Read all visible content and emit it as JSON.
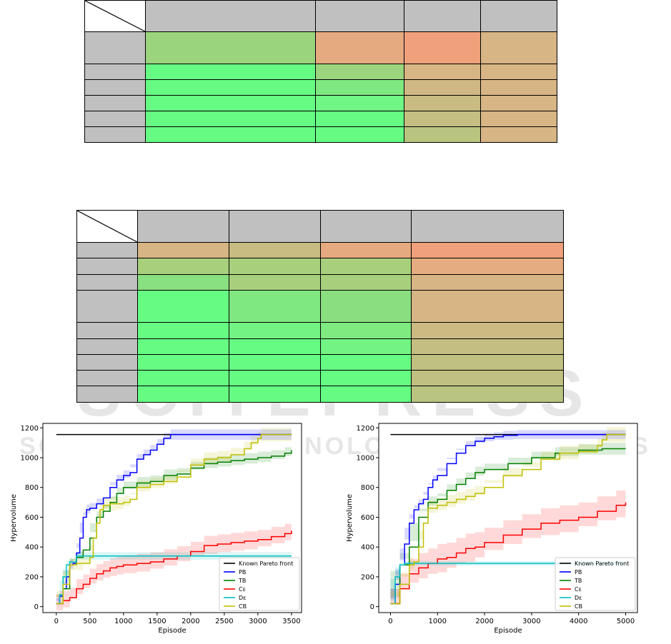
{
  "colors": {
    "header_gray": "#c0c0c0",
    "green": "#66ff88",
    "orange": "#f0a07a",
    "tan": "#d8b584",
    "watermark": "#d7d7d7"
  },
  "table1": {
    "col_widths": [
      85,
      238,
      124,
      107,
      107
    ],
    "row_heights": [
      44,
      45,
      22,
      22,
      22,
      22,
      22
    ],
    "cells": [
      [
        "#ffffff",
        "#c0c0c0",
        "#c0c0c0",
        "#c0c0c0",
        "#c0c0c0"
      ],
      [
        "#c0c0c0",
        "#9ad47c",
        "#e6aa80",
        "#f0a07a",
        "#d8b584"
      ],
      [
        "#c0c0c0",
        "#66fc84",
        "#9ad47c",
        "#d8b584",
        "#d8b584"
      ],
      [
        "#c0c0c0",
        "#66fc84",
        "#80e880",
        "#d0b884",
        "#d8b584"
      ],
      [
        "#c0c0c0",
        "#66fc84",
        "#6ff684",
        "#c8bc82",
        "#d8b584"
      ],
      [
        "#c0c0c0",
        "#66fc84",
        "#66fc84",
        "#c4be82",
        "#d8b584"
      ],
      [
        "#c0c0c0",
        "#66fc84",
        "#66fc84",
        "#b8c480",
        "#d8b584"
      ]
    ]
  },
  "table2": {
    "col_widths": [
      85,
      128,
      128,
      127,
      213
    ],
    "row_heights": [
      45,
      22,
      23,
      22,
      45,
      23,
      22,
      22,
      22,
      23
    ],
    "cells": [
      [
        "#ffffff",
        "#c0c0c0",
        "#c0c0c0",
        "#c0c0c0",
        "#c0c0c0"
      ],
      [
        "#c0c0c0",
        "#d8b584",
        "#c8bc82",
        "#e6aa80",
        "#f0a07a"
      ],
      [
        "#c0c0c0",
        "#a8d07c",
        "#a8d07c",
        "#a8d07c",
        "#e4ac80"
      ],
      [
        "#c0c0c0",
        "#88e080",
        "#a8d07c",
        "#a8d07c",
        "#d8b584"
      ],
      [
        "#c0c0c0",
        "#66fc84",
        "#80e880",
        "#8ade80",
        "#d8b584"
      ],
      [
        "#c0c0c0",
        "#66fc84",
        "#73f384",
        "#7eea80",
        "#cbba82"
      ],
      [
        "#c0c0c0",
        "#66fc84",
        "#66fc84",
        "#73f384",
        "#c4be82"
      ],
      [
        "#c0c0c0",
        "#66fc84",
        "#66fc84",
        "#66fc84",
        "#c0c080"
      ],
      [
        "#c0c0c0",
        "#66fc84",
        "#66fc84",
        "#66fc84",
        "#c0c080"
      ],
      [
        "#c0c0c0",
        "#66fc84",
        "#66fc84",
        "#66fc84",
        "#b8c480"
      ]
    ]
  },
  "watermark": {
    "line1": "SCITEPRESS",
    "line2": "SCIENCE AND TECHNOLOGY PUBLICATIONS"
  },
  "chart_data": [
    {
      "type": "line",
      "xlabel": "Episode",
      "ylabel": "Hypervolume",
      "xlim": [
        -200,
        3650
      ],
      "ylim": [
        -40,
        1230
      ],
      "xticks": [
        0,
        500,
        1000,
        1500,
        2000,
        2500,
        3000,
        3500
      ],
      "yticks": [
        0,
        200,
        400,
        600,
        800,
        1000,
        1200
      ],
      "grid": false,
      "legend_position": "lower-right",
      "series": [
        {
          "name": "Known Pareto front",
          "color": "#000000",
          "x": [
            0,
            3500
          ],
          "y": [
            1155,
            1155
          ],
          "band": 0
        },
        {
          "name": "PB",
          "color": "#0000ff",
          "x": [
            0,
            50,
            100,
            150,
            200,
            250,
            300,
            350,
            400,
            450,
            500,
            600,
            700,
            800,
            900,
            1000,
            1100,
            1200,
            1300,
            1400,
            1500,
            1600,
            1700,
            1800,
            3500
          ],
          "y": [
            20,
            70,
            120,
            200,
            280,
            290,
            360,
            460,
            600,
            650,
            660,
            690,
            730,
            800,
            850,
            880,
            900,
            990,
            1020,
            1050,
            1090,
            1130,
            1155,
            1155,
            1155
          ],
          "band": 35
        },
        {
          "name": "TB",
          "color": "#008000",
          "x": [
            0,
            100,
            200,
            300,
            400,
            500,
            600,
            700,
            800,
            900,
            1000,
            1200,
            1400,
            1600,
            1800,
            2000,
            2200,
            2400,
            2600,
            2800,
            3000,
            3200,
            3400,
            3500
          ],
          "y": [
            20,
            120,
            280,
            330,
            380,
            460,
            600,
            640,
            700,
            760,
            800,
            830,
            840,
            880,
            890,
            930,
            960,
            970,
            980,
            990,
            1000,
            1010,
            1030,
            1050
          ],
          "band": 40
        },
        {
          "name": "Cε",
          "color": "#ff0000",
          "x": [
            0,
            100,
            200,
            300,
            400,
            500,
            600,
            700,
            800,
            900,
            1000,
            1200,
            1400,
            1600,
            1800,
            2000,
            2200,
            2400,
            2600,
            2800,
            3000,
            3200,
            3400,
            3500
          ],
          "y": [
            20,
            40,
            60,
            120,
            150,
            190,
            220,
            240,
            260,
            270,
            280,
            290,
            300,
            320,
            340,
            370,
            410,
            420,
            430,
            440,
            450,
            470,
            490,
            510
          ],
          "band": 65
        },
        {
          "name": "Dε",
          "color": "#00bfbf",
          "x": [
            0,
            50,
            100,
            150,
            200,
            300,
            400,
            500,
            3500
          ],
          "y": [
            20,
            80,
            200,
            280,
            300,
            340,
            340,
            340,
            340
          ],
          "band": 25
        },
        {
          "name": "CB",
          "color": "#bfbf00",
          "x": [
            0,
            100,
            200,
            300,
            400,
            500,
            550,
            600,
            650,
            700,
            800,
            900,
            1000,
            1100,
            1200,
            1400,
            1600,
            1800,
            2000,
            2200,
            2400,
            2600,
            2800,
            2900,
            3000,
            3050,
            3500
          ],
          "y": [
            20,
            150,
            280,
            290,
            290,
            330,
            460,
            560,
            650,
            680,
            690,
            690,
            700,
            720,
            800,
            820,
            840,
            870,
            950,
            990,
            1000,
            1020,
            1060,
            1100,
            1130,
            1155,
            1155
          ],
          "band": 45
        }
      ]
    },
    {
      "type": "line",
      "xlabel": "Episode",
      "ylabel": "Hypervolume",
      "xlim": [
        -250,
        5250
      ],
      "ylim": [
        -40,
        1230
      ],
      "xticks": [
        0,
        1000,
        2000,
        3000,
        4000,
        5000
      ],
      "yticks": [
        0,
        200,
        400,
        600,
        800,
        1000,
        1200
      ],
      "grid": false,
      "legend_position": "lower-right",
      "series": [
        {
          "name": "Known Pareto front",
          "color": "#000000",
          "x": [
            0,
            5000
          ],
          "y": [
            1155,
            1155
          ],
          "band": 0
        },
        {
          "name": "PB",
          "color": "#0000ff",
          "x": [
            0,
            100,
            200,
            300,
            400,
            500,
            600,
            700,
            800,
            900,
            1000,
            1200,
            1400,
            1600,
            1800,
            2000,
            2200,
            2400,
            2600,
            2700,
            5000
          ],
          "y": [
            20,
            150,
            280,
            420,
            560,
            650,
            690,
            720,
            800,
            850,
            880,
            960,
            1030,
            1080,
            1110,
            1130,
            1140,
            1150,
            1150,
            1155,
            1155
          ],
          "band": 30
        },
        {
          "name": "TB",
          "color": "#008000",
          "x": [
            0,
            200,
            400,
            600,
            800,
            1000,
            1200,
            1400,
            1600,
            1800,
            2000,
            2500,
            3000,
            3500,
            4000,
            4500,
            5000
          ],
          "y": [
            20,
            280,
            400,
            600,
            700,
            720,
            780,
            820,
            860,
            900,
            920,
            960,
            1000,
            1030,
            1050,
            1060,
            1060
          ],
          "band": 40
        },
        {
          "name": "Cε",
          "color": "#ff0000",
          "x": [
            0,
            200,
            400,
            600,
            800,
            1000,
            1200,
            1400,
            1600,
            1800,
            2000,
            2400,
            2800,
            3200,
            3600,
            4000,
            4400,
            4800,
            5000
          ],
          "y": [
            20,
            120,
            220,
            260,
            290,
            320,
            330,
            360,
            390,
            400,
            430,
            480,
            520,
            560,
            580,
            600,
            640,
            680,
            700
          ],
          "band": 100
        },
        {
          "name": "Dε",
          "color": "#00bfbf",
          "x": [
            0,
            100,
            200,
            300,
            5000
          ],
          "y": [
            20,
            200,
            280,
            290,
            290
          ],
          "band": 15
        },
        {
          "name": "CB",
          "color": "#bfbf00",
          "x": [
            0,
            200,
            400,
            500,
            600,
            700,
            800,
            1000,
            1200,
            1400,
            1600,
            1800,
            2000,
            2400,
            2800,
            3200,
            3600,
            4000,
            4400,
            4500,
            4600,
            5000
          ],
          "y": [
            20,
            150,
            280,
            300,
            400,
            560,
            660,
            680,
            700,
            720,
            740,
            760,
            800,
            880,
            920,
            990,
            1030,
            1040,
            1080,
            1120,
            1155,
            1155
          ],
          "band": 50
        }
      ]
    }
  ]
}
